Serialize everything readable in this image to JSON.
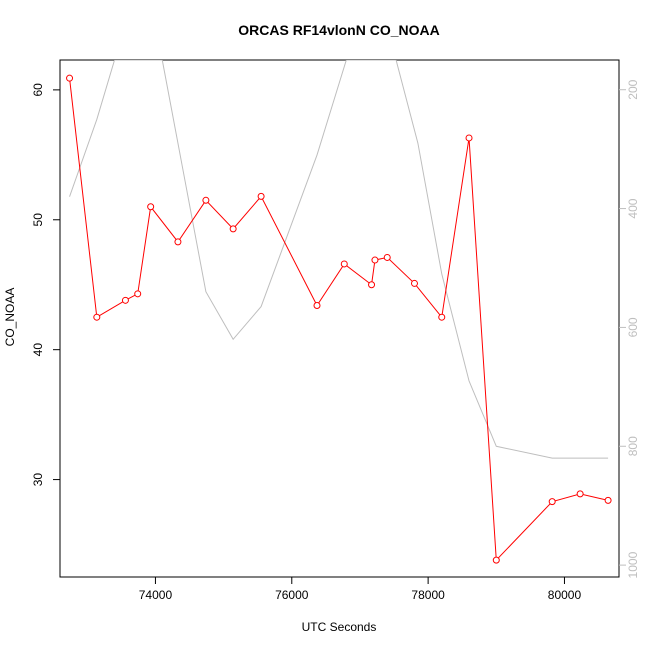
{
  "chart_data": {
    "type": "line",
    "title": "ORCAS RF14vlonN CO_NOAA",
    "xlabel": "UTC Seconds",
    "ylabel": "CO_NOAA",
    "xlim": [
      72600,
      80800
    ],
    "ylim": [
      22.5,
      62.3
    ],
    "x_ticks": [
      74000,
      76000,
      78000,
      80000
    ],
    "x_tick_labels": [
      "74000",
      "76000",
      "78000",
      "80000"
    ],
    "y_ticks": [
      30,
      40,
      50,
      60
    ],
    "y_tick_labels": [
      "30",
      "40",
      "50",
      "60"
    ],
    "y2_ticks": [
      200,
      400,
      600,
      800,
      1000
    ],
    "y2_tick_labels": [
      "200",
      "400",
      "600",
      "800",
      "1000"
    ],
    "y2lim_top_to_bottom": [
      150,
      1020
    ],
    "grid": false,
    "colors": {
      "primary": "#ff0000",
      "secondary": "#bebebe"
    },
    "series": [
      {
        "axis": "left",
        "markers": "open-circle",
        "x": [
          72740,
          73140,
          73560,
          73740,
          73930,
          74330,
          74740,
          75140,
          75550,
          76370,
          76770,
          77170,
          77220,
          77400,
          77800,
          78200,
          78600,
          79000,
          79820,
          80230,
          80640
        ],
        "y": [
          60.9,
          42.5,
          43.8,
          44.3,
          51.0,
          48.3,
          51.5,
          49.3,
          51.8,
          43.4,
          46.6,
          45.0,
          46.9,
          47.1,
          45.1,
          42.5,
          56.3,
          23.8,
          28.3,
          28.9,
          28.4
        ]
      },
      {
        "axis": "right",
        "markers": "none",
        "x": [
          72740,
          73140,
          73400,
          73500,
          74100,
          74330,
          74740,
          75140,
          75550,
          76370,
          76800,
          77530,
          77850,
          78200,
          78600,
          79000,
          79820,
          80640
        ],
        "y": [
          380,
          250,
          150,
          150,
          150,
          290,
          540,
          620,
          565,
          310,
          150,
          150,
          290,
          510,
          690,
          800,
          820,
          820
        ]
      }
    ]
  }
}
